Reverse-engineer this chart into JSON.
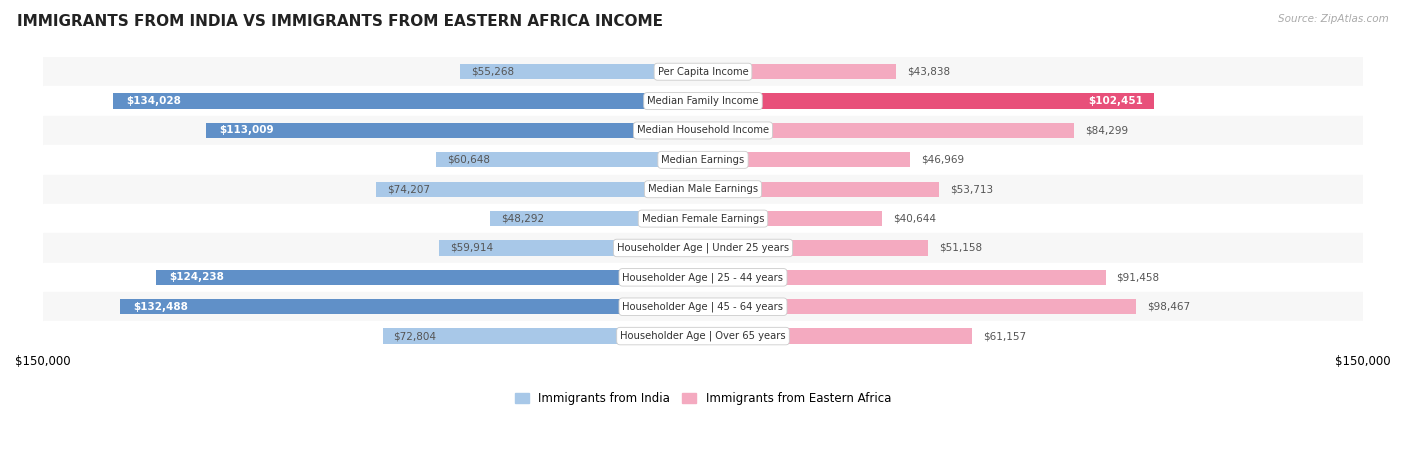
{
  "title": "IMMIGRANTS FROM INDIA VS IMMIGRANTS FROM EASTERN AFRICA INCOME",
  "source": "Source: ZipAtlas.com",
  "categories": [
    "Per Capita Income",
    "Median Family Income",
    "Median Household Income",
    "Median Earnings",
    "Median Male Earnings",
    "Median Female Earnings",
    "Householder Age | Under 25 years",
    "Householder Age | 25 - 44 years",
    "Householder Age | 45 - 64 years",
    "Householder Age | Over 65 years"
  ],
  "india_values": [
    55268,
    134028,
    113009,
    60648,
    74207,
    48292,
    59914,
    124238,
    132488,
    72804
  ],
  "eastern_africa_values": [
    43838,
    102451,
    84299,
    46969,
    53713,
    40644,
    51158,
    91458,
    98467,
    61157
  ],
  "india_label": "Immigrants from India",
  "eastern_africa_label": "Immigrants from Eastern Africa",
  "india_bar_color_light": "#a8c8e8",
  "india_bar_color_dark": "#6090c8",
  "eastern_africa_bar_color_light": "#f4aac0",
  "eastern_africa_bar_color_dark": "#e8507a",
  "india_text_color_outside": "#555555",
  "india_text_color_inside": "#ffffff",
  "eastern_africa_text_color_outside": "#555555",
  "eastern_africa_text_color_inside": "#ffffff",
  "axis_max": 150000,
  "background_color": "#ffffff",
  "row_bg_color_alt": "#eeeeee",
  "bar_height": 0.52,
  "legend_india_color": "#a8c8e8",
  "legend_africa_color": "#f4aac0",
  "india_threshold": 100000,
  "africa_threshold": 100000
}
